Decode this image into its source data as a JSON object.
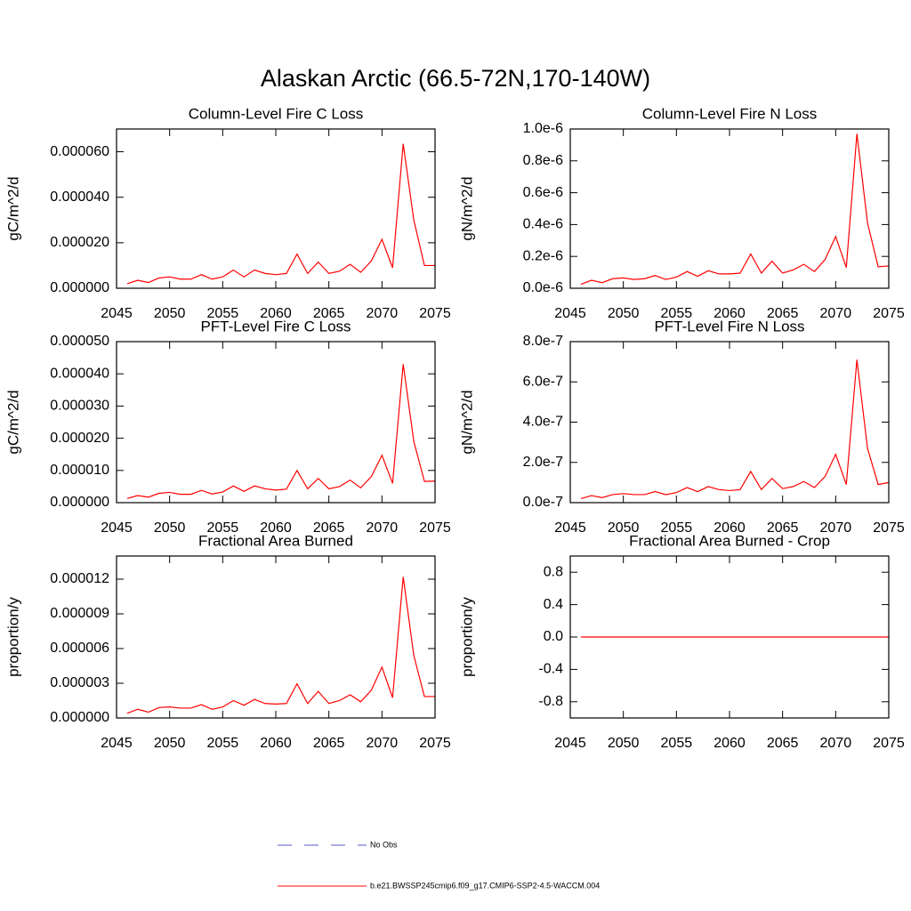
{
  "title": "Alaskan Arctic (66.5-72N,170-140W)",
  "legend": [
    {
      "name": "No Obs",
      "color": "#5a5ad0",
      "dash": true
    },
    {
      "name": "b.e21.BWSSP245cmip6.f09_g17.CMIP6-SSP2-4.5-WACCM.004",
      "color": "#ff0000",
      "dash": false
    }
  ],
  "chart_data": [
    {
      "type": "line",
      "title": "Column-Level Fire C Loss",
      "y_label": "gC/m^2/d",
      "x": [
        2046,
        2047,
        2048,
        2049,
        2050,
        2051,
        2052,
        2053,
        2054,
        2055,
        2056,
        2057,
        2058,
        2059,
        2060,
        2061,
        2062,
        2063,
        2064,
        2065,
        2066,
        2067,
        2068,
        2069,
        2070,
        2071,
        2072,
        2073,
        2074,
        2075
      ],
      "series": [
        {
          "color": "#ff0000",
          "values": [
            2e-06,
            3.5e-06,
            2.5e-06,
            4.5e-06,
            5e-06,
            4e-06,
            4e-06,
            6e-06,
            4e-06,
            5e-06,
            8e-06,
            5e-06,
            8e-06,
            6.5e-06,
            6e-06,
            6.5e-06,
            1.5e-05,
            6.5e-06,
            1.15e-05,
            6.5e-06,
            7.5e-06,
            1.05e-05,
            7e-06,
            1.2e-05,
            2.15e-05,
            9e-06,
            6.35e-05,
            3e-05,
            1e-05,
            1e-05
          ]
        }
      ],
      "xlim": [
        2045,
        2075
      ],
      "xticks": [
        2045,
        2050,
        2055,
        2060,
        2065,
        2070,
        2075
      ],
      "ylim": [
        0,
        7e-05
      ],
      "yticks": [
        {
          "value": 0,
          "label": "0.000000"
        },
        {
          "value": 2e-05,
          "label": "0.000020"
        },
        {
          "value": 4e-05,
          "label": "0.000040"
        },
        {
          "value": 6e-05,
          "label": "0.000060"
        }
      ]
    },
    {
      "type": "line",
      "title": "Column-Level Fire N Loss",
      "y_label": "gN/m^2/d",
      "x": [
        2046,
        2047,
        2048,
        2049,
        2050,
        2051,
        2052,
        2053,
        2054,
        2055,
        2056,
        2057,
        2058,
        2059,
        2060,
        2061,
        2062,
        2063,
        2064,
        2065,
        2066,
        2067,
        2068,
        2069,
        2070,
        2071,
        2072,
        2073,
        2074,
        2075
      ],
      "series": [
        {
          "color": "#ff0000",
          "values": [
            2.5e-08,
            5e-08,
            3.5e-08,
            6e-08,
            6.5e-08,
            5.5e-08,
            6e-08,
            8e-08,
            5.5e-08,
            7e-08,
            1.05e-07,
            7.5e-08,
            1.1e-07,
            9e-08,
            9e-08,
            9.5e-08,
            2.15e-07,
            9.5e-08,
            1.7e-07,
            9.5e-08,
            1.15e-07,
            1.5e-07,
            1.05e-07,
            1.8e-07,
            3.25e-07,
            1.3e-07,
            9.7e-07,
            4.1e-07,
            1.35e-07,
            1.4e-07
          ]
        }
      ],
      "xlim": [
        2045,
        2075
      ],
      "xticks": [
        2045,
        2050,
        2055,
        2060,
        2065,
        2070,
        2075
      ],
      "ylim": [
        0,
        1e-06
      ],
      "yticks": [
        {
          "value": 0,
          "label": "0.0e-6"
        },
        {
          "value": 2e-07,
          "label": "0.2e-6"
        },
        {
          "value": 4e-07,
          "label": "0.4e-6"
        },
        {
          "value": 6e-07,
          "label": "0.6e-6"
        },
        {
          "value": 8e-07,
          "label": "0.8e-6"
        },
        {
          "value": 1e-06,
          "label": "1.0e-6"
        }
      ]
    },
    {
      "type": "line",
      "title": "PFT-Level Fire C Loss",
      "y_label": "gC/m^2/d",
      "x": [
        2046,
        2047,
        2048,
        2049,
        2050,
        2051,
        2052,
        2053,
        2054,
        2055,
        2056,
        2057,
        2058,
        2059,
        2060,
        2061,
        2062,
        2063,
        2064,
        2065,
        2066,
        2067,
        2068,
        2069,
        2070,
        2071,
        2072,
        2073,
        2074,
        2075
      ],
      "series": [
        {
          "color": "#ff0000",
          "values": [
            1.3e-06,
            2.2e-06,
            1.7e-06,
            2.9e-06,
            3.2e-06,
            2.6e-06,
            2.6e-06,
            3.8e-06,
            2.7e-06,
            3.3e-06,
            5.2e-06,
            3.5e-06,
            5.2e-06,
            4.3e-06,
            3.9e-06,
            4.2e-06,
            1e-05,
            4.3e-06,
            7.5e-06,
            4.3e-06,
            5e-06,
            7e-06,
            4.6e-06,
            8.1e-06,
            1.47e-05,
            6e-06,
            4.3e-05,
            1.9e-05,
            6.6e-06,
            6.7e-06
          ]
        }
      ],
      "xlim": [
        2045,
        2075
      ],
      "xticks": [
        2045,
        2050,
        2055,
        2060,
        2065,
        2070,
        2075
      ],
      "ylim": [
        0,
        5e-05
      ],
      "yticks": [
        {
          "value": 0,
          "label": "0.000000"
        },
        {
          "value": 1e-05,
          "label": "0.000010"
        },
        {
          "value": 2e-05,
          "label": "0.000020"
        },
        {
          "value": 3e-05,
          "label": "0.000030"
        },
        {
          "value": 4e-05,
          "label": "0.000040"
        },
        {
          "value": 5e-05,
          "label": "0.000050"
        }
      ]
    },
    {
      "type": "line",
      "title": "PFT-Level Fire N Loss",
      "y_label": "gN/m^2/d",
      "x": [
        2046,
        2047,
        2048,
        2049,
        2050,
        2051,
        2052,
        2053,
        2054,
        2055,
        2056,
        2057,
        2058,
        2059,
        2060,
        2061,
        2062,
        2063,
        2064,
        2065,
        2066,
        2067,
        2068,
        2069,
        2070,
        2071,
        2072,
        2073,
        2074,
        2075
      ],
      "series": [
        {
          "color": "#ff0000",
          "values": [
            2e-08,
            3.5e-08,
            2.5e-08,
            4e-08,
            4.5e-08,
            4e-08,
            4e-08,
            5.5e-08,
            4e-08,
            5e-08,
            7.5e-08,
            5.5e-08,
            8e-08,
            6.5e-08,
            6e-08,
            6.5e-08,
            1.55e-07,
            6.5e-08,
            1.2e-07,
            7e-08,
            8e-08,
            1.05e-07,
            7.5e-08,
            1.3e-07,
            2.4e-07,
            9e-08,
            7.1e-07,
            2.7e-07,
            9e-08,
            1e-07
          ]
        }
      ],
      "xlim": [
        2045,
        2075
      ],
      "xticks": [
        2045,
        2050,
        2055,
        2060,
        2065,
        2070,
        2075
      ],
      "ylim": [
        0,
        8e-07
      ],
      "yticks": [
        {
          "value": 0,
          "label": "0.0e-7"
        },
        {
          "value": 2e-07,
          "label": "2.0e-7"
        },
        {
          "value": 4e-07,
          "label": "4.0e-7"
        },
        {
          "value": 6e-07,
          "label": "6.0e-7"
        },
        {
          "value": 8e-07,
          "label": "8.0e-7"
        }
      ]
    },
    {
      "type": "line",
      "title": "Fractional Area Burned",
      "y_label": "proportion/y",
      "x": [
        2046,
        2047,
        2048,
        2049,
        2050,
        2051,
        2052,
        2053,
        2054,
        2055,
        2056,
        2057,
        2058,
        2059,
        2060,
        2061,
        2062,
        2063,
        2064,
        2065,
        2066,
        2067,
        2068,
        2069,
        2070,
        2071,
        2072,
        2073,
        2074,
        2075
      ],
      "series": [
        {
          "color": "#ff0000",
          "values": [
            4e-07,
            7.5e-07,
            5e-07,
            9e-07,
            9.5e-07,
            8.5e-07,
            8.5e-07,
            1.15e-06,
            7.5e-07,
            9.5e-07,
            1.5e-06,
            1.1e-06,
            1.6e-06,
            1.25e-06,
            1.2e-06,
            1.25e-06,
            2.95e-06,
            1.25e-06,
            2.3e-06,
            1.25e-06,
            1.5e-06,
            2e-06,
            1.4e-06,
            2.4e-06,
            4.4e-06,
            1.75e-06,
            1.22e-05,
            5.4e-06,
            1.85e-06,
            1.85e-06
          ]
        }
      ],
      "xlim": [
        2045,
        2075
      ],
      "xticks": [
        2045,
        2050,
        2055,
        2060,
        2065,
        2070,
        2075
      ],
      "ylim": [
        0,
        1.4e-05
      ],
      "yticks": [
        {
          "value": 0,
          "label": "0.000000"
        },
        {
          "value": 3e-06,
          "label": "0.000003"
        },
        {
          "value": 6e-06,
          "label": "0.000006"
        },
        {
          "value": 9e-06,
          "label": "0.000009"
        },
        {
          "value": 1.2e-05,
          "label": "0.000012"
        }
      ]
    },
    {
      "type": "line",
      "title": "Fractional Area Burned - Crop",
      "y_label": "proportion/y",
      "x": [
        2046,
        2047,
        2048,
        2049,
        2050,
        2051,
        2052,
        2053,
        2054,
        2055,
        2056,
        2057,
        2058,
        2059,
        2060,
        2061,
        2062,
        2063,
        2064,
        2065,
        2066,
        2067,
        2068,
        2069,
        2070,
        2071,
        2072,
        2073,
        2074,
        2075
      ],
      "series": [
        {
          "color": "#ff0000",
          "values": [
            0,
            0,
            0,
            0,
            0,
            0,
            0,
            0,
            0,
            0,
            0,
            0,
            0,
            0,
            0,
            0,
            0,
            0,
            0,
            0,
            0,
            0,
            0,
            0,
            0,
            0,
            0,
            0,
            0,
            0
          ]
        }
      ],
      "xlim": [
        2045,
        2075
      ],
      "xticks": [
        2045,
        2050,
        2055,
        2060,
        2065,
        2070,
        2075
      ],
      "ylim": [
        -1,
        1
      ],
      "yticks": [
        -0.8,
        -0.4,
        {
          "value": 0,
          "label": "0.0"
        },
        0.4,
        0.8
      ]
    }
  ]
}
